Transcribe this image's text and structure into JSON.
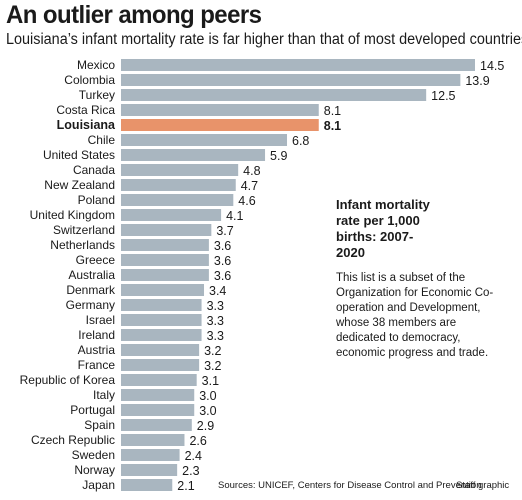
{
  "header": {
    "title": "An outlier among peers",
    "subtitle": "Louisiana’s infant mortality rate is far higher than that of most developed countries."
  },
  "note": {
    "title": "Infant mortality rate per 1,000 births: 2007-2020",
    "body": "This list is a subset of the Organization for Economic Co-operation and Development, whose 38 members are dedicated to democracy, economic progress and trade."
  },
  "footer": {
    "source": "Sources: UNICEF, Centers for Disease Control and Prevention",
    "credit": "Staff graphic"
  },
  "colors": {
    "bar": "#a9b6c0",
    "highlight": "#e8936a"
  },
  "chart_data": {
    "type": "bar",
    "orientation": "horizontal",
    "title": "",
    "xlabel": "",
    "ylabel": "",
    "highlight": "Louisiana",
    "xlim": [
      0,
      14.5
    ],
    "grid": false,
    "categories": [
      "Mexico",
      "Colombia",
      "Turkey",
      "Costa Rica",
      "Louisiana",
      "Chile",
      "United States",
      "Canada",
      "New Zealand",
      "Poland",
      "United Kingdom",
      "Switzerland",
      "Netherlands",
      "Greece",
      "Australia",
      "Denmark",
      "Germany",
      "Israel",
      "Ireland",
      "Austria",
      "France",
      "Republic of Korea",
      "Italy",
      "Portugal",
      "Spain",
      "Czech Republic",
      "Sweden",
      "Norway",
      "Japan"
    ],
    "values": [
      14.5,
      13.9,
      12.5,
      8.1,
      8.1,
      6.8,
      5.9,
      4.8,
      4.7,
      4.6,
      4.1,
      3.7,
      3.6,
      3.6,
      3.6,
      3.4,
      3.3,
      3.3,
      3.3,
      3.2,
      3.2,
      3.1,
      3.0,
      3.0,
      2.9,
      2.6,
      2.4,
      2.3,
      2.1
    ],
    "value_labels": [
      "14.5",
      "13.9",
      "12.5",
      "8.1",
      "8.1",
      "6.8",
      "5.9",
      "4.8",
      "4.7",
      "4.6",
      "4.1",
      "3.7",
      "3.6",
      "3.6",
      "3.6",
      "3.4",
      "3.3",
      "3.3",
      "3.3",
      "3.2",
      "3.2",
      "3.1",
      "3.0",
      "3.0",
      "2.9",
      "2.6",
      "2.4",
      "2.3",
      "2.1"
    ]
  }
}
